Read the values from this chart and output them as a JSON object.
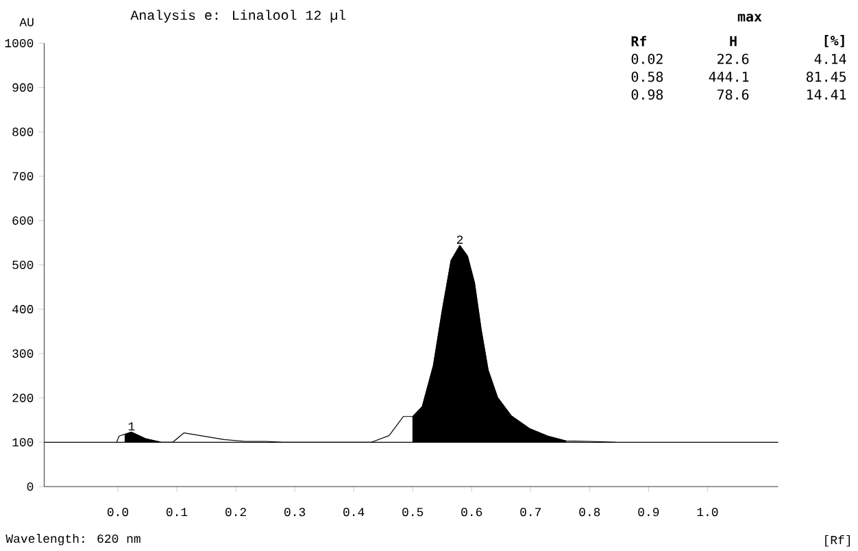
{
  "chart_data": {
    "type": "line",
    "title": "Analysis e: Linalool 12 µl",
    "xlim": [
      -0.125,
      1.12
    ],
    "ylim": [
      0,
      1000
    ],
    "xticks": [
      {
        "value": 0,
        "label": "0.0"
      },
      {
        "value": 0.1,
        "label": "0.1"
      },
      {
        "value": 0.2,
        "label": "0.2"
      },
      {
        "value": 0.3,
        "label": "0.3"
      },
      {
        "value": 0.4,
        "label": "0.4"
      },
      {
        "value": 0.5,
        "label": "0.5"
      },
      {
        "value": 0.6,
        "label": "0.6"
      },
      {
        "value": 0.7,
        "label": "0.7"
      },
      {
        "value": 0.8,
        "label": "0.8"
      },
      {
        "value": 0.9,
        "label": "0.9"
      },
      {
        "value": 1.0,
        "label": "1.0"
      }
    ],
    "yticks": [
      0,
      100,
      200,
      300,
      400,
      500,
      600,
      700,
      800,
      900,
      1000
    ],
    "marker": "none",
    "line_style": "solid",
    "ref_lines": [
      {
        "axis": "y",
        "value": 100,
        "color": "#000000"
      }
    ],
    "series": [
      {
        "color": "#000000",
        "x": [
          -0.002,
          0.002,
          0.012,
          0.023,
          0.047,
          0.074,
          0.093,
          0.112,
          0.14,
          0.18,
          0.216,
          0.25,
          0.28,
          0.43,
          0.46,
          0.484,
          0.5,
          0.516,
          0.535,
          0.55,
          0.565,
          0.58,
          0.593,
          0.605,
          0.616,
          0.628,
          0.644,
          0.667,
          0.698,
          0.729,
          0.76,
          0.8,
          0.845
        ],
        "values": [
          100,
          114,
          118,
          123,
          108,
          100,
          100,
          121,
          115,
          106,
          102,
          102,
          100,
          100,
          115,
          158,
          158,
          180,
          273,
          397,
          510,
          544,
          520,
          459,
          356,
          263,
          201,
          160,
          131,
          114,
          103,
          102,
          100
        ]
      },
      {
        "type": "area",
        "color": "#000000",
        "x": [
          0.012,
          0.023,
          0.047,
          0.07
        ],
        "values": [
          118,
          123,
          108,
          101
        ]
      },
      {
        "type": "area",
        "color": "#000000",
        "x": [
          0.5,
          0.516,
          0.535,
          0.55,
          0.565,
          0.58,
          0.593,
          0.605,
          0.616,
          0.628,
          0.644,
          0.667,
          0.698,
          0.729,
          0.76
        ],
        "values": [
          158,
          180,
          273,
          397,
          510,
          544,
          520,
          459,
          356,
          263,
          201,
          160,
          131,
          114,
          103
        ]
      }
    ],
    "annotations": [
      {
        "text": "1",
        "x": 0.023,
        "y": 123
      },
      {
        "text": "2",
        "x": 0.58,
        "y": 544
      },
      "AU",
      "[Rf]",
      "Wavelength: 620 nm",
      "max",
      "Rf",
      "H",
      "[%]",
      "0.02",
      "22.6",
      "4.14",
      "0.58",
      "444.1",
      "81.45",
      "0.98",
      "78.6",
      "14.41"
    ]
  }
}
